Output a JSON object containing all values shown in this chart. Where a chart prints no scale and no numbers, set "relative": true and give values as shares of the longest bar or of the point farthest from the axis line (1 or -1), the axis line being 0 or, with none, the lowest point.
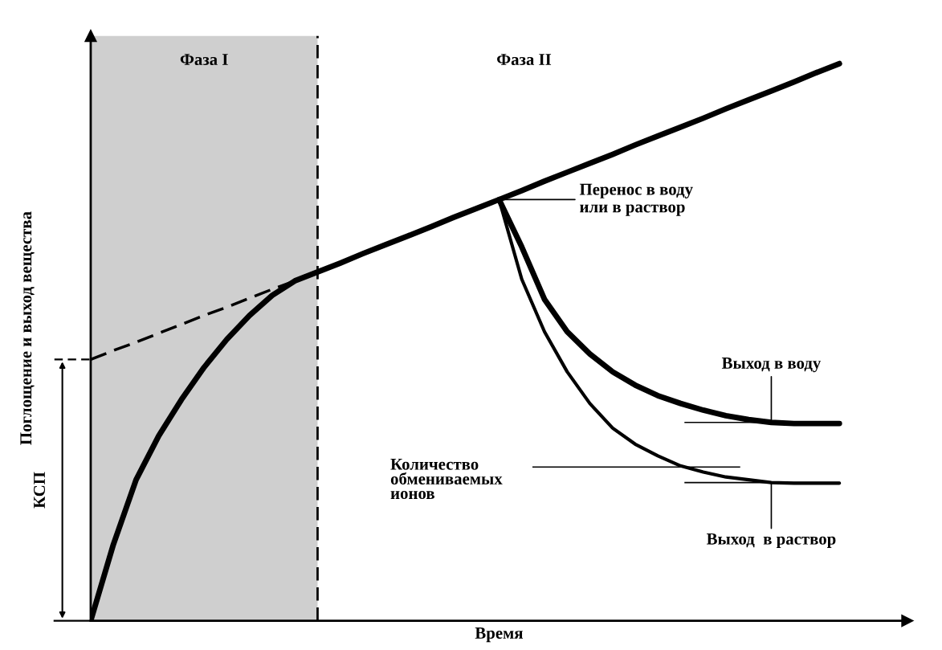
{
  "chart_data": {
    "type": "line",
    "relative": true,
    "xlabel": "Время",
    "ylabel": "Поглощение и выход вещества",
    "categories": [
      null,
      null,
      null,
      null,
      null,
      null,
      null,
      null,
      null,
      null,
      null,
      null,
      null,
      null,
      null,
      null,
      null,
      null,
      null,
      null,
      null,
      null,
      null,
      null,
      null,
      null,
      null,
      null,
      null,
      null,
      null,
      null,
      null,
      null,
      null,
      null,
      null
    ],
    "series": [
      {
        "color": "#000000",
        "line_style": "solid",
        "values": [
          0,
          0.137,
          0.253,
          0.332,
          0.397,
          0.455,
          0.505,
          0.548,
          0.584,
          0.61,
          0.626,
          0.642,
          0.659,
          0.675,
          0.691,
          0.707,
          0.724,
          0.74,
          0.756,
          0.772,
          0.789,
          0.805,
          0.821,
          0.837,
          0.854,
          0.87,
          0.886,
          0.902,
          0.919,
          0.935,
          0.951,
          0.967,
          0.984,
          1.0,
          null,
          null,
          null
        ]
      },
      {
        "color": "#000000",
        "line_style": "dashed",
        "values": [
          0.469,
          0.485,
          0.5,
          0.516,
          0.532,
          0.548,
          0.563,
          0.579,
          0.595,
          0.61,
          0.626,
          null,
          null,
          null,
          null,
          null,
          null,
          null,
          null,
          null,
          null,
          null,
          null,
          null,
          null,
          null,
          null,
          null,
          null,
          null,
          null,
          null,
          null,
          null,
          null,
          null,
          null
        ]
      },
      {
        "color": "#000000",
        "line_style": "solid",
        "values": [
          null,
          null,
          null,
          null,
          null,
          null,
          null,
          null,
          null,
          null,
          null,
          null,
          null,
          null,
          null,
          null,
          null,
          null,
          0.756,
          0.671,
          0.577,
          0.519,
          0.479,
          0.447,
          0.423,
          0.404,
          0.39,
          0.378,
          0.368,
          0.361,
          0.356,
          0.354,
          0.354,
          0.354,
          null,
          null,
          null
        ]
      },
      {
        "color": "#000000",
        "line_style": "solid",
        "values": [
          null,
          null,
          null,
          null,
          null,
          null,
          null,
          null,
          null,
          null,
          null,
          null,
          null,
          null,
          null,
          null,
          null,
          null,
          0.756,
          0.613,
          0.519,
          0.447,
          0.39,
          0.346,
          0.317,
          0.296,
          0.278,
          0.267,
          0.258,
          0.253,
          0.248,
          0.247,
          0.247,
          0.247,
          null,
          null,
          null
        ]
      }
    ],
    "annotations": [
      "Фаза I",
      "Фаза II",
      "КСП",
      "Перенос в воду\nили в раствор",
      "Выход в воду",
      "Количество\nобмениваемых\nионов",
      "Выход  в раствор"
    ]
  }
}
